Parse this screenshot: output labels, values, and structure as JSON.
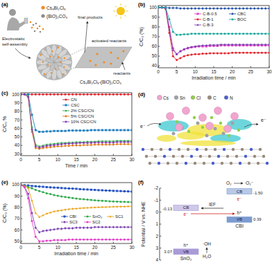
{
  "panel_labels": [
    "(a)",
    "(b)",
    "(c)",
    "(d)",
    "(e)",
    "(f)"
  ],
  "diagram_a": {
    "cs_label": "Cs₃Bi₂Cl₉",
    "boc_label": "(BiO)₂CO₃",
    "assembly": [
      "Electrostatic",
      "self-assembly"
    ],
    "products": "final products",
    "activated": "activated reactants",
    "reactants": "reactants",
    "composite": "Cs₃Bi₂Cl₉-(BiO)₂CO₃"
  },
  "diagram_d": {
    "legend": [
      "Cs",
      "Sn",
      "Cl",
      "C",
      "N"
    ],
    "colors": [
      "#f0a6cf",
      "#a0a0a8",
      "#8ed04a",
      "#9a8a7a",
      "#4a5ed0"
    ],
    "electrons": [
      "e⁻",
      "e⁻"
    ]
  },
  "chart_data": [
    {
      "type": "line",
      "x_label": "Irradiation time / min",
      "y_label": "C/C₀ (%)",
      "legend": "upper right",
      "x": [
        0,
        1,
        2,
        3,
        4,
        5,
        6,
        7,
        8,
        9,
        10,
        11,
        12,
        13,
        14,
        15,
        16,
        17,
        18,
        19,
        20,
        21,
        22,
        23,
        24,
        25,
        26,
        27,
        28,
        29,
        30
      ],
      "xlim": [
        0,
        30
      ],
      "xticks": [
        0,
        5,
        10,
        15,
        20,
        25,
        30
      ],
      "ylim": [
        38,
        102
      ],
      "yticks": [
        40,
        50,
        60,
        70,
        80,
        90,
        100
      ],
      "series": [
        {
          "name": "C-B-0.5",
          "color": "#e040c8",
          "marker": "square",
          "values": [
            100,
            100,
            100,
            80,
            58,
            52,
            55,
            57,
            58,
            59,
            59.5,
            60,
            60,
            60,
            60.5,
            60.5,
            60.5,
            61,
            61,
            61,
            61,
            61,
            61,
            61,
            61,
            61,
            61,
            61,
            61,
            61,
            61
          ]
        },
        {
          "name": "C-B-1",
          "color": "#e0242a",
          "marker": "circle",
          "values": [
            100,
            100,
            99,
            74,
            50,
            46,
            48,
            50,
            51,
            51.5,
            52,
            52,
            52.5,
            52.5,
            53,
            53,
            53,
            53,
            53,
            53,
            53.5,
            53.5,
            53.5,
            53.5,
            53.5,
            53.5,
            53.5,
            53.5,
            53.5,
            53.5,
            53.5
          ]
        },
        {
          "name": "C-B-3",
          "color": "#7b3fb0",
          "marker": "triangle",
          "values": [
            100,
            100,
            99,
            77,
            56,
            52,
            55,
            57,
            58.5,
            59.5,
            60,
            60.5,
            61,
            61,
            61.5,
            61.5,
            61.5,
            62,
            62,
            62,
            62,
            62,
            62,
            62,
            62,
            62,
            62,
            62,
            62,
            62,
            62
          ]
        },
        {
          "name": "CBC",
          "color": "#1f4fa8",
          "marker": "diamond",
          "values": [
            100,
            100,
            100,
            99.5,
            99.5,
            99.5,
            99,
            99,
            99,
            99,
            99,
            99,
            99,
            99,
            99,
            99,
            99,
            99,
            99,
            99,
            99,
            99,
            99,
            99,
            99,
            99,
            99,
            99,
            99,
            99,
            99
          ]
        },
        {
          "name": "BOC",
          "color": "#1aa89a",
          "marker": "circle",
          "values": [
            100,
            100,
            100,
            88,
            75,
            72,
            72,
            72.5,
            72.5,
            73,
            73,
            73,
            73,
            73,
            73,
            73,
            73,
            73,
            73,
            73,
            73,
            73,
            73,
            73,
            73,
            73,
            73,
            73,
            73,
            73,
            73
          ]
        }
      ]
    },
    {
      "type": "line",
      "x_label": "Time / min",
      "y_label": "C/C₀ %",
      "legend": "upper right",
      "x": [
        0,
        1,
        2,
        3,
        4,
        5,
        6,
        7,
        8,
        9,
        10,
        11,
        12,
        13,
        14,
        15,
        16,
        17,
        18,
        19,
        20,
        21,
        22,
        23,
        24,
        25,
        26,
        27,
        28,
        29,
        30
      ],
      "xlim": [
        0,
        30
      ],
      "xticks": [
        0,
        5,
        10,
        15,
        20,
        25,
        30
      ],
      "ylim": [
        28,
        102
      ],
      "yticks": [
        30,
        40,
        50,
        60,
        70,
        80,
        90,
        100
      ],
      "series": [
        {
          "name": "CN",
          "color": "#e0242a",
          "marker": "circle",
          "values": [
            100,
            100,
            100,
            100,
            100,
            100,
            100,
            100,
            100,
            100,
            100,
            100,
            100,
            100,
            100,
            100,
            100,
            100,
            100,
            100,
            100,
            100,
            100,
            100,
            100,
            100,
            100,
            100,
            100,
            100,
            100
          ]
        },
        {
          "name": "CSC",
          "color": "#1f7fc0",
          "marker": "square",
          "values": [
            100,
            100,
            100,
            76,
            58,
            56,
            56,
            56.5,
            56.5,
            57,
            57,
            57,
            57,
            57.5,
            57.5,
            57.5,
            57.5,
            57.5,
            57.5,
            58,
            58,
            58,
            58,
            58,
            58,
            58,
            58,
            58,
            58,
            58,
            58
          ]
        },
        {
          "name": "2% CSC/CN",
          "color": "#2fa84a",
          "marker": "triangle",
          "values": [
            100,
            100,
            98,
            62,
            41,
            39,
            40,
            41,
            41.5,
            42,
            42.5,
            43,
            43,
            43.5,
            43.5,
            44,
            44,
            44,
            44.5,
            44.5,
            44.5,
            45,
            45,
            45,
            45,
            45,
            45.5,
            45.5,
            45.5,
            45.5,
            45.5
          ]
        },
        {
          "name": "5% CSC/CN",
          "color": "#e07a1a",
          "marker": "diamond",
          "values": [
            100,
            100,
            97,
            56,
            37,
            36,
            37,
            37.5,
            38,
            38.5,
            39,
            39,
            39.5,
            39.5,
            40,
            40,
            40,
            40.5,
            40.5,
            40.5,
            41,
            41,
            41,
            41,
            41,
            41,
            41.5,
            41.5,
            41.5,
            41.5,
            41.5
          ]
        },
        {
          "name": "10% CSC/CN",
          "color": "#8a3fb0",
          "marker": "circle",
          "values": [
            100,
            100,
            97,
            59,
            39,
            37.5,
            38.5,
            39.5,
            40,
            40.5,
            41,
            41.5,
            42,
            42,
            42.5,
            42.5,
            43,
            43,
            43,
            43,
            43.5,
            43.5,
            43.5,
            43.5,
            43.5,
            43.5,
            44,
            44,
            44,
            44,
            44
          ]
        }
      ]
    },
    {
      "type": "line",
      "x_label": "Irradiation time / min",
      "y_label": "C/C₀ (%)",
      "legend": "center right",
      "x": [
        0,
        1,
        2,
        3,
        4,
        5,
        6,
        7,
        8,
        9,
        10,
        11,
        12,
        13,
        14,
        15,
        16,
        17,
        18,
        19,
        20,
        21,
        22,
        23,
        24,
        25,
        26,
        27,
        28,
        29,
        30
      ],
      "xlim": [
        0,
        30
      ],
      "xticks": [
        0,
        5,
        10,
        15,
        20,
        25,
        30
      ],
      "ylim": [
        48,
        102
      ],
      "yticks": [
        50,
        60,
        70,
        80,
        90,
        100
      ],
      "series": [
        {
          "name": "CBI",
          "color": "#2050c0",
          "marker": "square",
          "values": [
            100,
            99.7,
            99.5,
            99,
            98.8,
            98.5,
            98.3,
            98,
            97.8,
            97.6,
            97.5,
            97.2,
            97,
            96.8,
            96.7,
            96.5,
            96.2,
            96,
            95.9,
            95.7,
            95.5,
            95.3,
            95.2,
            95,
            94.9,
            94.7,
            94.6,
            94.5,
            94.3,
            94.2,
            94
          ]
        },
        {
          "name": "SnO₂",
          "color": "#2aa84a",
          "marker": "circle",
          "values": [
            100,
            99,
            98,
            97,
            95.5,
            94.5,
            93.5,
            92.5,
            91.8,
            91,
            90.3,
            89.8,
            89.2,
            88.8,
            88.3,
            87.9,
            87.5,
            87.2,
            86.9,
            86.6,
            86.3,
            86.1,
            85.9,
            85.7,
            85.5,
            85.3,
            85.2,
            85,
            84.9,
            84.8,
            84.7
          ]
        },
        {
          "name": "SC1",
          "color": "#e8a317",
          "marker": "triangle",
          "values": [
            100,
            99,
            97,
            86,
            75,
            71.5,
            73,
            74.5,
            75.5,
            76.5,
            77,
            77.5,
            78,
            78.5,
            78.8,
            79,
            79.3,
            79.5,
            79.7,
            79.9,
            80,
            80.2,
            80.3,
            80.4,
            80.5,
            80.6,
            80.7,
            80.8,
            80.8,
            80.9,
            81
          ]
        },
        {
          "name": "SC3",
          "color": "#7b3fb0",
          "marker": "diamond",
          "values": [
            100,
            98,
            92,
            75,
            62,
            58,
            59,
            59.5,
            60,
            60.5,
            61,
            61,
            61.5,
            61.5,
            61.5,
            62,
            62,
            62,
            62,
            62,
            62.5,
            62.5,
            62.5,
            62.5,
            62.5,
            62.5,
            62.5,
            62.5,
            62.5,
            62.5,
            62.5
          ]
        },
        {
          "name": "SC2",
          "color": "#e040c8",
          "marker": "circle",
          "values": [
            100,
            98,
            88,
            68,
            54,
            50,
            50,
            50.5,
            50.5,
            51,
            51,
            51,
            51,
            51.5,
            51.5,
            51.5,
            51.5,
            51.5,
            51.5,
            51.5,
            51.5,
            51.5,
            51.5,
            51.5,
            51.5,
            51.5,
            51.5,
            51.5,
            51.5,
            51.5,
            51.5
          ]
        }
      ]
    },
    {
      "type": "band",
      "y_label": "Potential / V vs. NHE",
      "categories": [
        "SnO₂",
        "CBI"
      ],
      "colors": [
        "#a99bd6",
        "#7d9bcf"
      ],
      "ylim": [
        -2,
        4
      ],
      "yticks": [
        -2,
        -1,
        0,
        1,
        2,
        3,
        4
      ],
      "series": [
        {
          "name": "CB",
          "values": [
            -0.13,
            -1.5
          ],
          "value_labels": [
            "-0.13",
            "-1.50"
          ]
        },
        {
          "name": "VB",
          "values": [
            3.07,
            0.39
          ]
        }
      ],
      "annotations": [
        "IEF",
        "O₂",
        "·O₂⁻",
        "H₂O",
        "·OH",
        "e⁻",
        "h⁺",
        "e⁻",
        "h⁺"
      ]
    }
  ]
}
